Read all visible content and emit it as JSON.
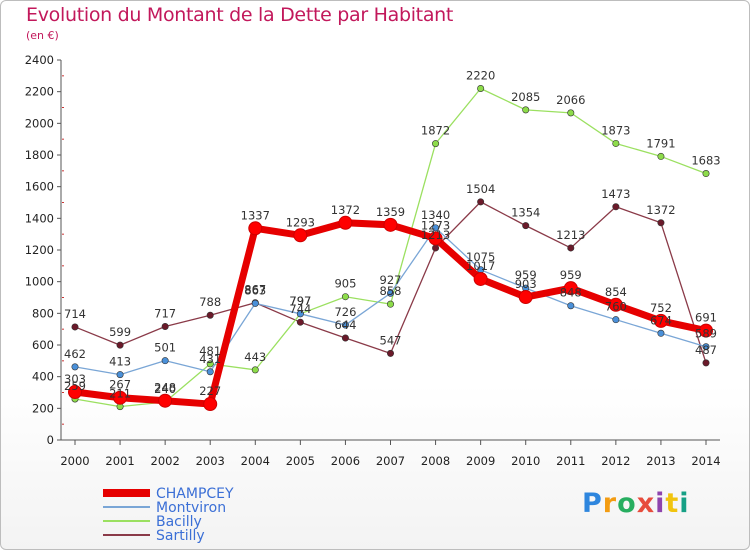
{
  "title": "Evolution du Montant de la Dette par Habitant",
  "subtitle": "(en €)",
  "logo": {
    "text": "Proxiti",
    "colors": [
      "#2e86de",
      "#f39c12",
      "#27ae60",
      "#e74c3c",
      "#8e44ad",
      "#f1c40f",
      "#16a085"
    ]
  },
  "chart_data": {
    "type": "line",
    "x": [
      "2000",
      "2001",
      "2002",
      "2003",
      "2004",
      "2005",
      "2006",
      "2007",
      "2008",
      "2009",
      "2010",
      "2011",
      "2012",
      "2013",
      "2014"
    ],
    "ylim": [
      0,
      2400
    ],
    "yticks": [
      0,
      200,
      400,
      600,
      800,
      1000,
      1200,
      1400,
      1600,
      1800,
      2000,
      2200,
      2400
    ],
    "grid": false,
    "legend_position": "bottom-left",
    "series": [
      {
        "name": "CHAMPCEY",
        "color": "#ff0000",
        "line_color": "#e60000",
        "width": 7,
        "values": [
          303,
          267,
          248,
          227,
          1337,
          1293,
          1372,
          1359,
          1273,
          1017,
          903,
          959,
          854,
          752,
          691
        ]
      },
      {
        "name": "Montviron",
        "color": "#4a90d9",
        "line_color": "#7aa6d6",
        "width": 1.3,
        "values": [
          462,
          413,
          501,
          431,
          863,
          797,
          726,
          927,
          1340,
          1075,
          959,
          848,
          760,
          674,
          589
        ]
      },
      {
        "name": "Bacilly",
        "color": "#8ddc4a",
        "line_color": "#9be060",
        "width": 1.3,
        "values": [
          259,
          211,
          240,
          481,
          443,
          797,
          905,
          858,
          1872,
          2220,
          2085,
          2066,
          1873,
          1791,
          1683
        ]
      },
      {
        "name": "Sartilly",
        "color": "#6b1a2a",
        "line_color": "#8a3a48",
        "width": 1.3,
        "values": [
          714,
          599,
          717,
          788,
          867,
          744,
          644,
          547,
          1213,
          1504,
          1354,
          1213,
          1473,
          1372,
          487
        ]
      }
    ]
  }
}
